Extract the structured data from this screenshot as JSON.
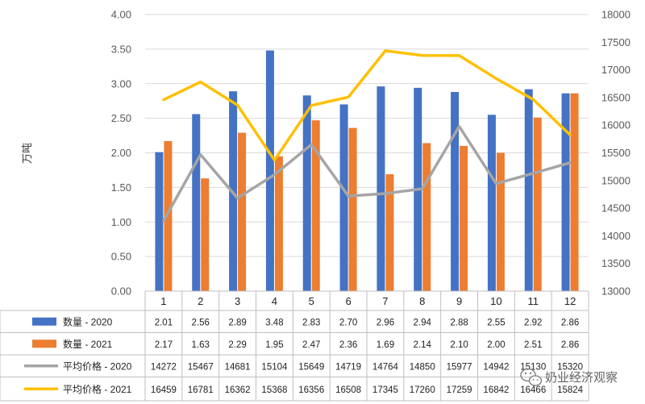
{
  "chart_data": {
    "type": "bar",
    "ylabel": "万吨",
    "ylim": [
      0,
      4
    ],
    "y_ticks": [
      "0.00",
      "0.50",
      "1.00",
      "1.50",
      "2.00",
      "2.50",
      "3.00",
      "3.50",
      "4.00"
    ],
    "y2lim": [
      13000,
      18000
    ],
    "y2_ticks": [
      "13000",
      "13500",
      "14000",
      "14500",
      "15000",
      "15500",
      "16000",
      "16500",
      "17000",
      "17500",
      "18000"
    ],
    "categories": [
      "1",
      "2",
      "3",
      "4",
      "5",
      "6",
      "7",
      "8",
      "9",
      "10",
      "11",
      "12"
    ],
    "series": [
      {
        "name": "数量 - 2020",
        "type": "bar",
        "axis": "left",
        "color": "#4472c4",
        "values": [
          2.01,
          2.56,
          2.89,
          3.48,
          2.83,
          2.7,
          2.96,
          2.94,
          2.88,
          2.55,
          2.92,
          2.86
        ],
        "labels": [
          "2.01",
          "2.56",
          "2.89",
          "3.48",
          "2.83",
          "2.70",
          "2.96",
          "2.94",
          "2.88",
          "2.55",
          "2.92",
          "2.86"
        ]
      },
      {
        "name": "数量 - 2021",
        "type": "bar",
        "axis": "left",
        "color": "#ed7d31",
        "values": [
          2.17,
          1.63,
          2.29,
          1.95,
          2.47,
          2.36,
          1.69,
          2.14,
          2.1,
          2.0,
          2.51,
          2.86
        ],
        "labels": [
          "2.17",
          "1.63",
          "2.29",
          "1.95",
          "2.47",
          "2.36",
          "1.69",
          "2.14",
          "2.10",
          "2.00",
          "2.51",
          "2.86"
        ]
      },
      {
        "name": "平均价格 - 2020",
        "type": "line",
        "axis": "right",
        "color": "#a5a5a5",
        "values": [
          14272,
          15467,
          14681,
          15104,
          15649,
          14719,
          14764,
          14850,
          15977,
          14942,
          15130,
          15320
        ],
        "labels": [
          "14272",
          "15467",
          "14681",
          "15104",
          "15649",
          "14719",
          "14764",
          "14850",
          "15977",
          "14942",
          "15130",
          "15320"
        ]
      },
      {
        "name": "平均价格 - 2021",
        "type": "line",
        "axis": "right",
        "color": "#ffc000",
        "values": [
          16459,
          16781,
          16362,
          15368,
          16356,
          16508,
          17345,
          17260,
          17259,
          16842,
          16466,
          15824
        ],
        "labels": [
          "16459",
          "16781",
          "16362",
          "15368",
          "16356",
          "16508",
          "17345",
          "17260",
          "17259",
          "16842",
          "16466",
          "15824"
        ]
      }
    ],
    "grid": true,
    "data_table": true
  },
  "watermark": {
    "text": "奶业经济观察"
  }
}
